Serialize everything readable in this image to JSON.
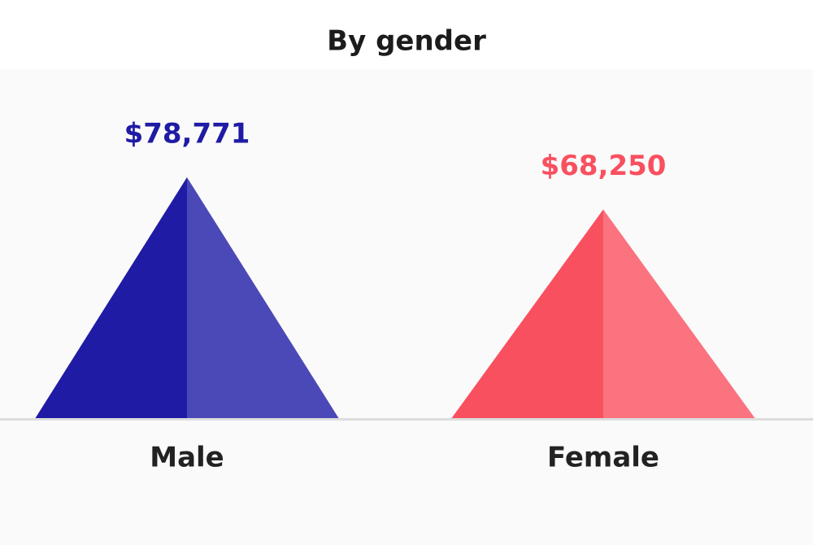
{
  "chart_data": {
    "type": "triangle-bar",
    "title": "By gender",
    "categories": [
      "Male",
      "Female"
    ],
    "values": [
      78771,
      68250
    ],
    "value_labels": [
      "$78,771",
      "$68,250"
    ],
    "colors": [
      "#1f1ba5",
      "#f9505f"
    ]
  }
}
